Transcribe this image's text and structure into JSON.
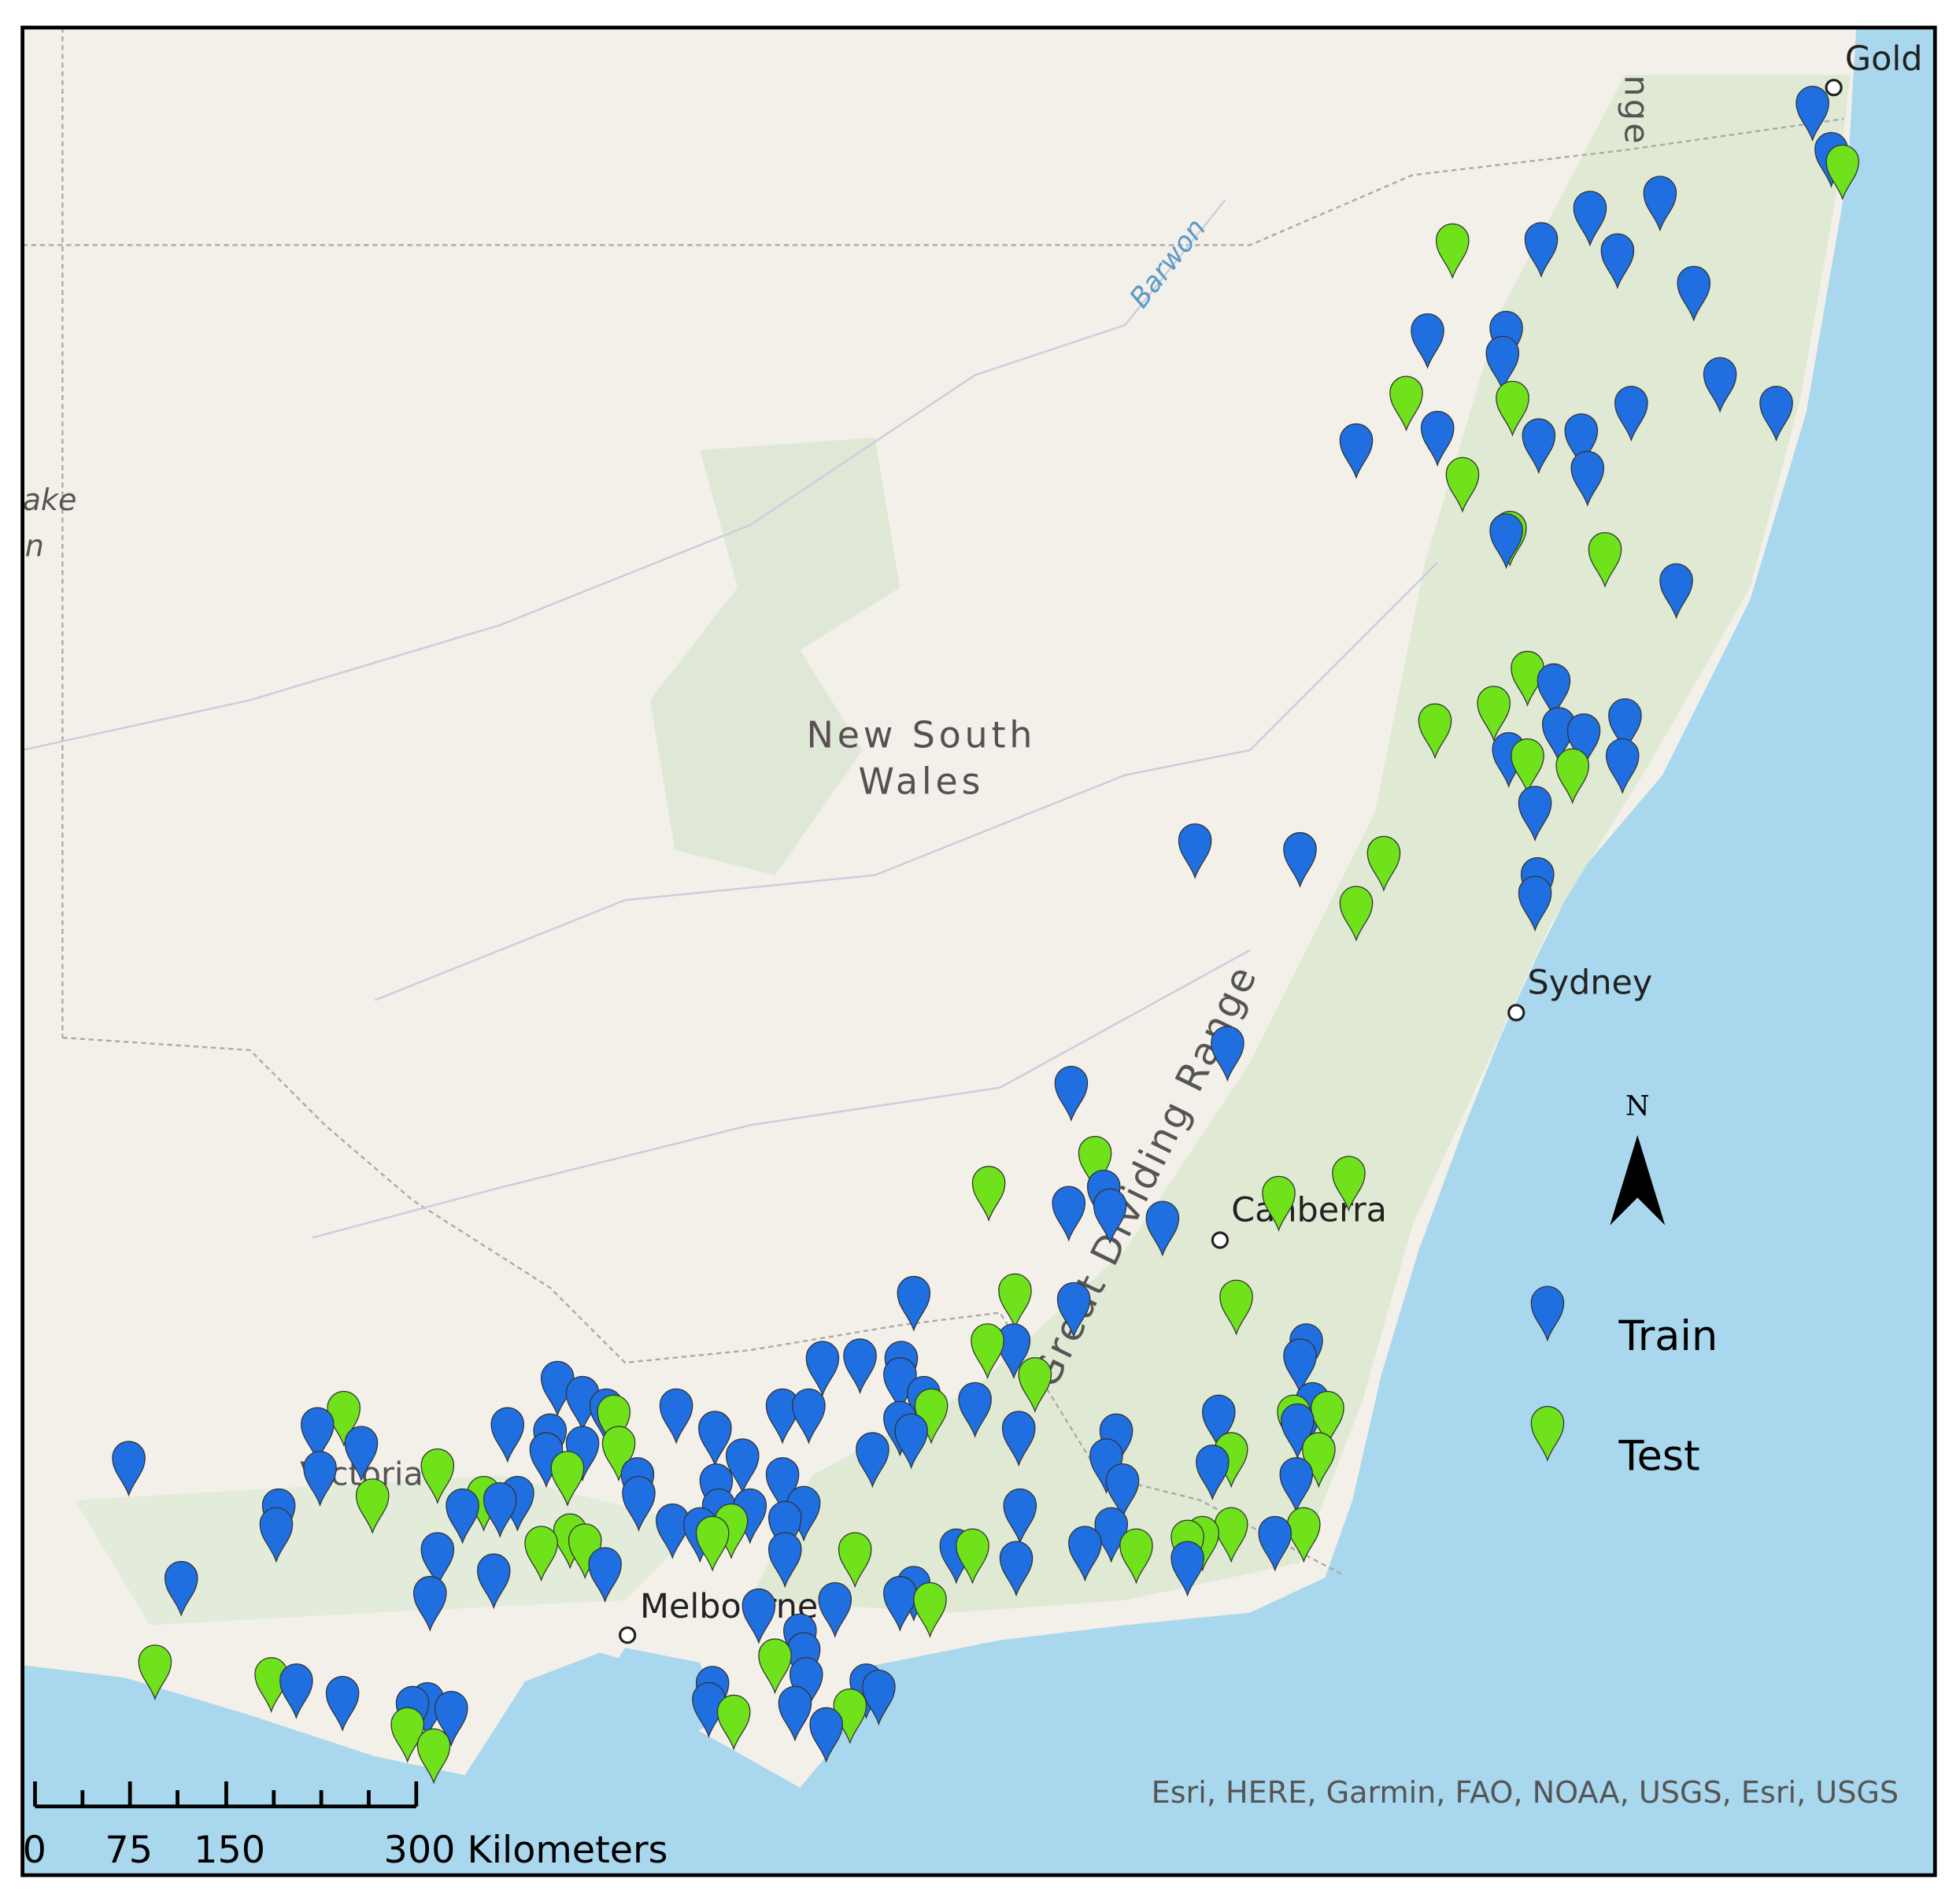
{
  "map": {
    "place_labels": {
      "gold_coast": "Gold C",
      "range_top": "nge",
      "barwon": "Barwon",
      "lake": "ake",
      "lake2": "n",
      "nsw_line1": "New South",
      "nsw_line2": "Wales",
      "sydney": "Sydney",
      "range": "Great Dividing Range",
      "canberra": "Canberra",
      "melbourne": "Melbourne",
      "victoria": "Victoria"
    },
    "north": "N",
    "legend": {
      "train": "Train",
      "test": "Test"
    },
    "scale_bar": {
      "labels": [
        "0",
        "75",
        "150",
        "300 Kilometers"
      ]
    },
    "attribution": "Esri, HERE, Garmin, FAO, NOAA, USGS, Esri, USGS"
  }
}
